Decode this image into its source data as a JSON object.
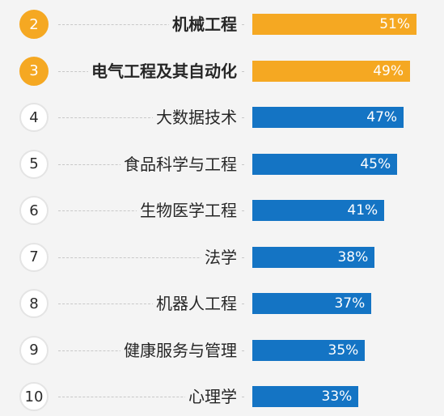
{
  "colors": {
    "highlight": "#f5a822",
    "bar": "#1474c4",
    "background": "#f4f4f4"
  },
  "chart_data": {
    "type": "bar",
    "orientation": "horizontal",
    "ranks": [
      "2",
      "3",
      "4",
      "5",
      "6",
      "7",
      "8",
      "9",
      "10"
    ],
    "categories": [
      "机械工程",
      "电气工程及其自动化",
      "大数据技术",
      "食品科学与工程",
      "生物医学工程",
      "法学",
      "机器人工程",
      "健康服务与管理",
      "心理学"
    ],
    "values": [
      51,
      49,
      47,
      45,
      41,
      38,
      37,
      35,
      33
    ],
    "value_labels": [
      "51%",
      "49%",
      "47%",
      "45%",
      "41%",
      "38%",
      "37%",
      "35%",
      "33%"
    ],
    "highlighted": [
      true,
      true,
      false,
      false,
      false,
      false,
      false,
      false,
      false
    ],
    "title": "",
    "xlabel": "",
    "ylabel": "",
    "xlim": [
      0,
      51
    ],
    "grid": false,
    "legend": "none"
  }
}
